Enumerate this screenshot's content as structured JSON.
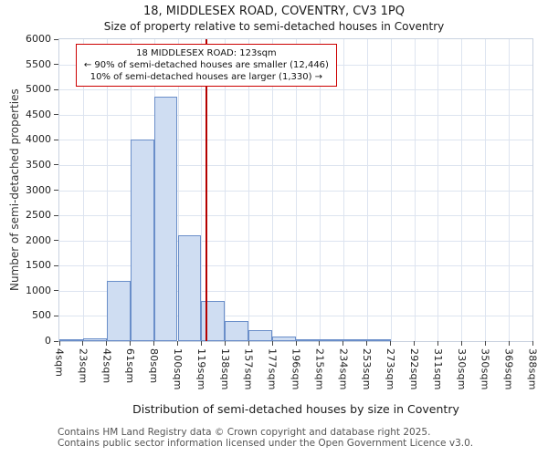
{
  "title": "18, MIDDLESEX ROAD, COVENTRY, CV3 1PQ",
  "subtitle": "Size of property relative to semi-detached houses in Coventry",
  "annotation": {
    "line1": "18 MIDDLESEX ROAD: 123sqm",
    "line2": "← 90% of semi-detached houses are smaller (12,446)",
    "line3": "10% of semi-detached houses are larger (1,330) →"
  },
  "footer": {
    "line1": "Contains HM Land Registry data © Crown copyright and database right 2025.",
    "line2": "Contains public sector information licensed under the Open Government Licence v3.0."
  },
  "chart_data": {
    "type": "bar",
    "title": "18, MIDDLESEX ROAD, COVENTRY, CV3 1PQ",
    "subtitle": "Size of property relative to semi-detached houses in Coventry",
    "xlabel": "Distribution of semi-detached houses by size in Coventry",
    "ylabel": "Number of semi-detached properties",
    "bin_edges_sqm": [
      4,
      23,
      42,
      61,
      80,
      100,
      119,
      138,
      157,
      177,
      196,
      215,
      234,
      253,
      273,
      292,
      311,
      330,
      350,
      369,
      388
    ],
    "x_tick_labels": [
      "4sqm",
      "23sqm",
      "42sqm",
      "61sqm",
      "80sqm",
      "100sqm",
      "119sqm",
      "138sqm",
      "157sqm",
      "177sqm",
      "196sqm",
      "215sqm",
      "234sqm",
      "253sqm",
      "273sqm",
      "292sqm",
      "311sqm",
      "330sqm",
      "350sqm",
      "369sqm",
      "388sqm"
    ],
    "values": [
      5,
      55,
      1200,
      4000,
      4850,
      2100,
      800,
      400,
      210,
      90,
      40,
      15,
      10,
      5,
      0,
      0,
      0,
      0,
      0,
      0
    ],
    "ylim": [
      0,
      6000
    ],
    "y_ticks": [
      0,
      500,
      1000,
      1500,
      2000,
      2500,
      3000,
      3500,
      4000,
      4500,
      5000,
      5500,
      6000
    ],
    "marker_value_sqm": 123,
    "grid": true,
    "legend": null,
    "colors": {
      "bar_fill": "#cfddf2",
      "bar_border": "#6a8ec9",
      "marker_line": "#b40000",
      "annotation_border": "#cc0000",
      "grid_line": "#dde4f0"
    }
  }
}
